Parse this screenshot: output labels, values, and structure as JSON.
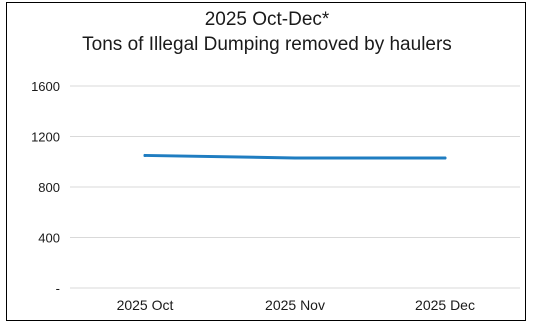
{
  "chart_data": {
    "type": "line",
    "title": [
      "2025 Oct-Dec*",
      "Tons of Illegal Dumping removed by haulers"
    ],
    "xlabel": "",
    "ylabel": "",
    "categories": [
      "2025 Oct",
      "2025 Nov",
      "2025 Dec"
    ],
    "series": [
      {
        "values": [
          1050,
          1030,
          1030
        ]
      }
    ],
    "ylim": [
      0,
      1600
    ],
    "yticks": [
      0,
      400,
      800,
      1200,
      1600
    ],
    "ytick_labels": [
      "-",
      "400",
      "800",
      "1200",
      "1600"
    ],
    "grid": true,
    "legend": "none",
    "colors": {
      "line": "#1f7dc1",
      "grid": "#d9d9d9",
      "text": "#1a1a1a"
    }
  }
}
